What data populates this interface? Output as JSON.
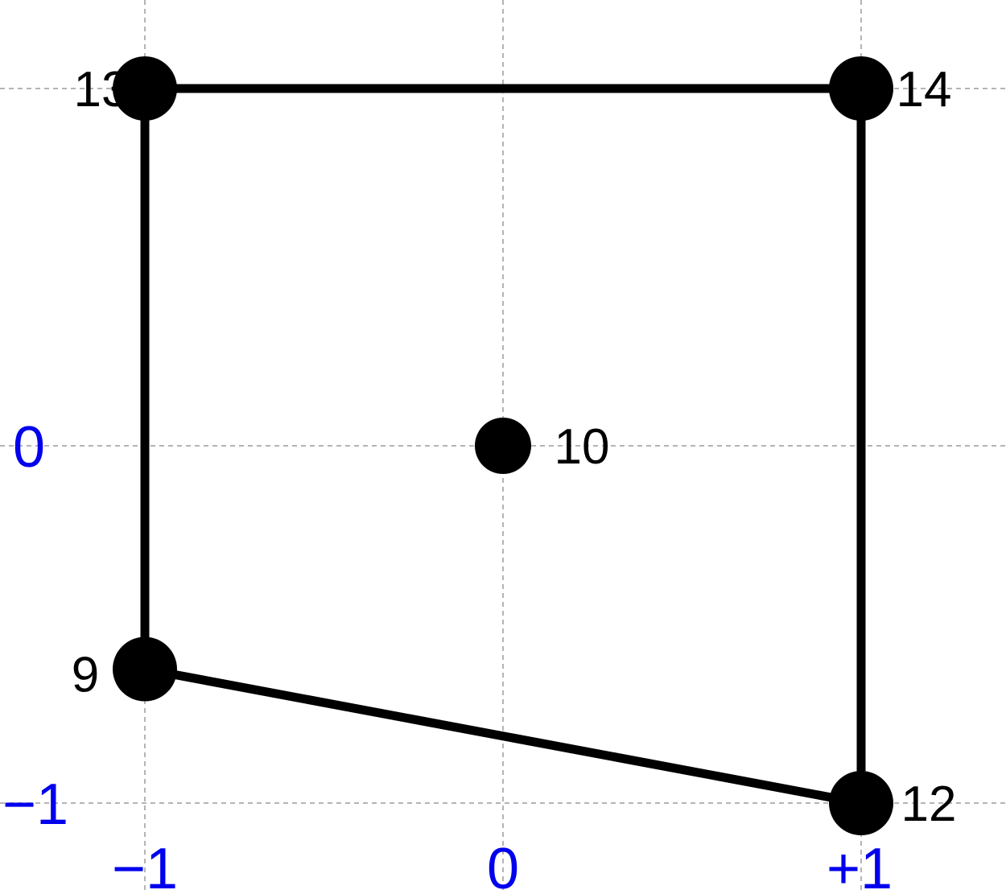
{
  "colors": {
    "grid": "#b4b4b4",
    "node": "#000000",
    "edge": "#000000",
    "tick_label": "#0000ee",
    "node_label": "#000000"
  },
  "diagram": {
    "x_ticks": [
      {
        "value": -1,
        "label": "−1"
      },
      {
        "value": 0,
        "label": "0"
      },
      {
        "value": 1,
        "label": "+1"
      }
    ],
    "y_ticks": [
      {
        "value": 0,
        "label": "0"
      },
      {
        "value": -1,
        "label": "−1"
      }
    ],
    "nodes": [
      {
        "id": "13",
        "label": "13",
        "x": -1,
        "y": 1,
        "size": "large"
      },
      {
        "id": "14",
        "label": "14",
        "x": 1,
        "y": 1,
        "size": "large"
      },
      {
        "id": "10",
        "label": "10",
        "x": 0,
        "y": 0,
        "size": "small"
      },
      {
        "id": "9",
        "label": "9",
        "x": -1,
        "y": -0.625,
        "size": "large"
      },
      {
        "id": "12",
        "label": "12",
        "x": 1,
        "y": -1,
        "size": "large"
      }
    ],
    "edges": [
      {
        "from": "13",
        "to": "14"
      },
      {
        "from": "13",
        "to": "9"
      },
      {
        "from": "14",
        "to": "12"
      },
      {
        "from": "9",
        "to": "12"
      }
    ]
  }
}
